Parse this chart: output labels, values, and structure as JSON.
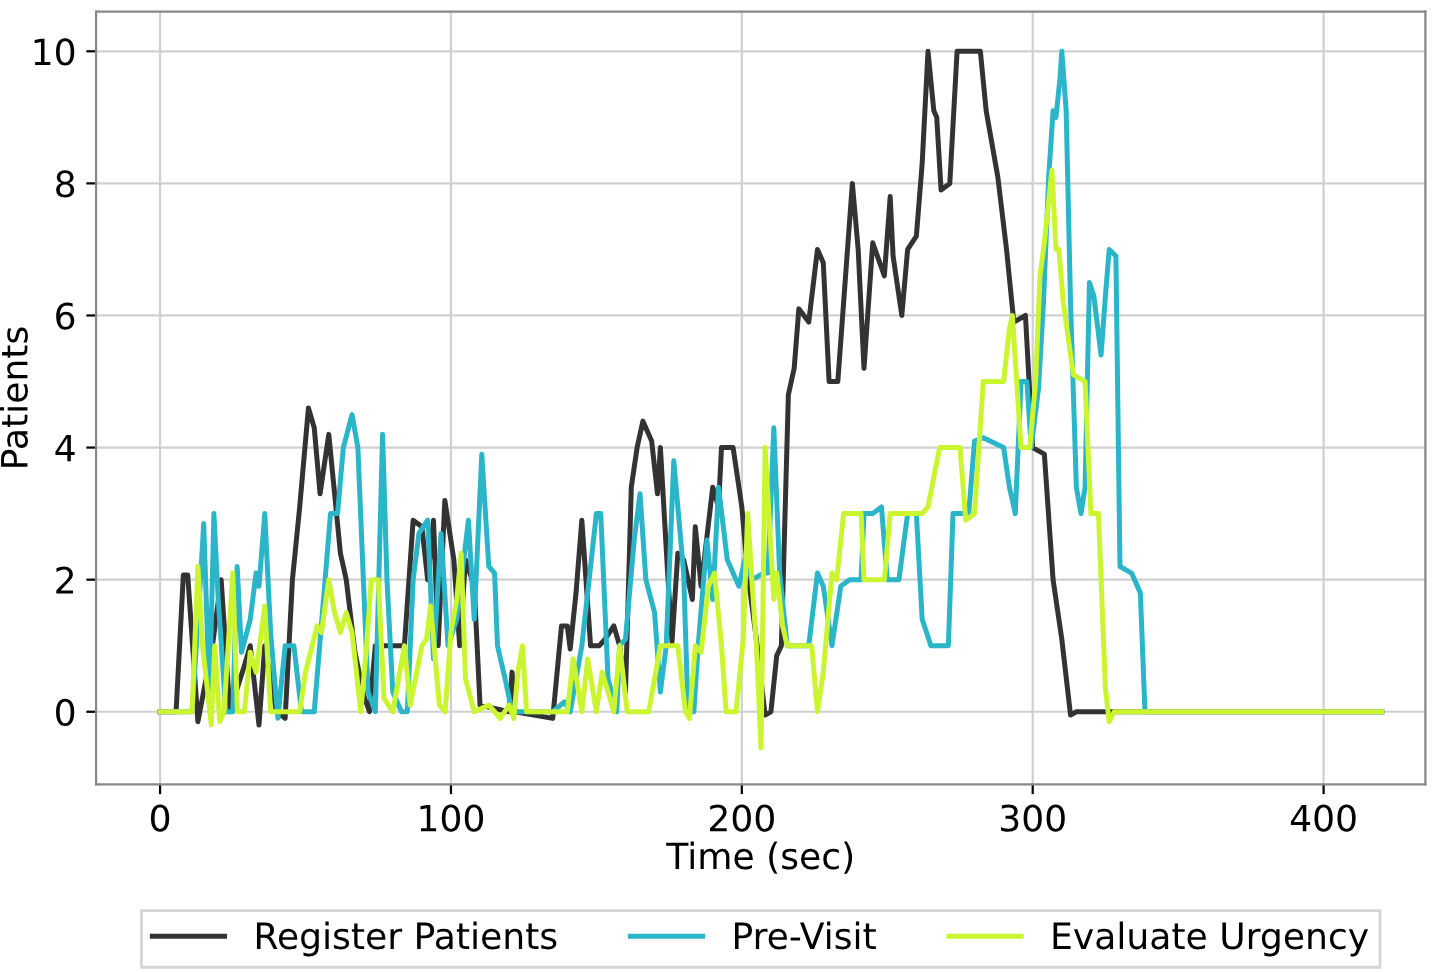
{
  "chart_data": {
    "type": "line",
    "xlabel": "Time (sec)",
    "ylabel": "Patients",
    "xlim": [
      -22,
      435
    ],
    "ylim": [
      -1.1,
      10.6
    ],
    "xticks": [
      0,
      100,
      200,
      300,
      400
    ],
    "yticks": [
      0,
      2,
      4,
      6,
      8,
      10
    ],
    "grid": true,
    "legend": "bottom",
    "line_style": "solid",
    "series": [
      {
        "name": "Register Patients",
        "color": "#333333",
        "x": [
          0,
          5.5,
          8,
          9.5,
          13,
          18,
          21,
          24,
          29,
          31,
          34,
          36,
          40,
          43,
          45.5,
          48,
          51,
          53,
          55,
          58,
          62,
          64,
          67,
          70,
          72,
          74,
          84,
          87,
          90,
          92,
          94,
          95.6,
          97.9,
          101,
          103,
          105,
          108,
          110,
          120,
          121,
          122,
          135,
          138,
          140,
          141,
          143,
          145,
          148,
          151,
          153,
          156,
          158,
          160,
          162,
          164,
          166,
          169,
          171,
          172,
          174.5,
          176,
          178,
          180,
          183,
          184,
          186,
          190,
          192,
          193,
          197,
          200,
          202,
          205,
          208,
          210,
          212,
          213.6,
          216,
          218,
          219.6,
          223,
          226,
          228,
          230,
          233,
          236,
          238,
          240,
          242,
          245,
          249,
          251,
          252,
          255,
          257,
          260,
          262,
          264,
          266,
          267,
          268.5,
          271.5,
          274,
          282,
          284,
          288,
          291,
          293.5,
          297.5,
          300,
          304,
          307,
          310,
          313,
          315,
          420
        ],
        "values": [
          0,
          0,
          2.07,
          2.07,
          -0.15,
          1.0,
          2.0,
          0,
          0.7,
          1.0,
          -0.2,
          1.0,
          0,
          -0.1,
          2.0,
          3.1,
          4.6,
          4.3,
          3.3,
          4.2,
          2.4,
          2.0,
          0.9,
          0.25,
          0,
          1.0,
          1.0,
          2.9,
          2.8,
          2.0,
          2.9,
          1.0,
          3.2,
          2.3,
          1.0,
          2.3,
          1.9,
          0.1,
          0,
          0.6,
          0,
          -0.1,
          1.3,
          1.3,
          0.95,
          1.8,
          2.9,
          1.0,
          1.0,
          1.1,
          1.3,
          1.0,
          0.3,
          3.4,
          4.0,
          4.4,
          4.1,
          3.3,
          4.0,
          2.1,
          1.06,
          2.4,
          2.3,
          1.7,
          2.8,
          1.9,
          3.4,
          3.1,
          4.0,
          4.0,
          3.1,
          2.1,
          1.1,
          -0.05,
          0,
          0.85,
          1.0,
          4.8,
          5.2,
          6.1,
          5.9,
          7.0,
          6.8,
          5.0,
          5.0,
          6.8,
          8.0,
          7.0,
          5.2,
          7.1,
          6.6,
          7.8,
          6.9,
          6.0,
          7.0,
          7.2,
          8.3,
          10.0,
          9.1,
          9.0,
          7.9,
          8.0,
          10.0,
          10.0,
          9.1,
          8.1,
          7.0,
          5.9,
          6.0,
          4.0,
          3.9,
          2.0,
          1.1,
          -0.05,
          0,
          0
        ]
      },
      {
        "name": "Pre-Visit",
        "color": "#2ab5c9",
        "x": [
          0,
          10,
          11,
          13.5,
          15,
          17,
          18.5,
          20,
          22.6,
          25,
          26.5,
          28,
          31,
          33,
          34,
          36,
          38,
          40.5,
          43,
          46,
          48.6,
          53,
          58.6,
          61,
          63,
          66,
          68,
          71.5,
          74,
          76.5,
          78,
          80,
          83,
          85,
          87,
          89,
          92,
          94,
          96.6,
          99,
          102,
          106,
          108,
          110.6,
          113,
          115,
          116,
          118.6,
          121,
          135,
          139,
          141,
          145,
          148,
          150,
          151.5,
          154,
          157,
          158,
          160,
          163,
          165,
          167,
          170,
          172,
          174,
          176.6,
          180,
          181.5,
          183.5,
          185,
          188,
          190,
          192,
          195,
          199,
          201,
          203.5,
          207.6,
          209,
          211,
          213,
          215.6,
          223,
          226,
          228,
          231,
          234,
          237,
          241,
          242,
          245,
          248,
          250,
          254,
          257,
          260,
          262,
          265,
          271,
          272.6,
          278,
          280,
          283,
          290,
          292,
          294,
          296,
          298,
          299.5,
          302,
          303.7,
          305.5,
          307,
          308,
          309.4,
          310,
          311.5,
          313,
          315,
          316.6,
          318,
          319.5,
          321,
          323.5,
          325,
          326.3,
          328.6,
          330,
          334,
          337,
          338.6,
          420
        ],
        "values": [
          0,
          0,
          0,
          1.7,
          2.85,
          0.2,
          3.0,
          1.7,
          0,
          0,
          2.2,
          0.9,
          1.4,
          2.1,
          1.9,
          3.0,
          1.2,
          -0.1,
          1.0,
          1.0,
          0,
          0,
          3.0,
          3.0,
          4.0,
          4.5,
          4.0,
          0.3,
          0,
          4.2,
          2.0,
          0.3,
          0,
          0,
          2.0,
          2.7,
          2.9,
          0.8,
          2.7,
          1.0,
          1.4,
          2.9,
          1.4,
          3.9,
          2.2,
          2.1,
          1.0,
          0.5,
          0,
          0,
          0.15,
          0,
          1.0,
          2.2,
          3.0,
          3.0,
          0.5,
          0,
          1.0,
          1.1,
          2.6,
          3.3,
          2.0,
          1.5,
          0.3,
          1.0,
          3.8,
          2.1,
          0,
          0,
          1.0,
          2.6,
          1.7,
          3.4,
          2.3,
          1.9,
          2.3,
          2.0,
          2.1,
          2.1,
          4.3,
          2.1,
          1.0,
          1.0,
          2.1,
          1.9,
          1.0,
          1.9,
          2.0,
          2.0,
          3.0,
          3.0,
          3.1,
          2.0,
          2.0,
          3.0,
          3.0,
          1.4,
          1.0,
          1.0,
          3.0,
          3.0,
          4.1,
          4.15,
          4.0,
          3.4,
          3.0,
          5.0,
          5.0,
          4.0,
          4.9,
          6.2,
          8.1,
          9.1,
          9.0,
          9.6,
          10.0,
          9.1,
          6.2,
          3.4,
          3.0,
          3.4,
          6.5,
          6.3,
          5.4,
          6.3,
          7.0,
          6.9,
          2.2,
          2.1,
          1.8,
          0,
          0
        ]
      },
      {
        "name": "Evaluate Urgency",
        "color": "#ccf531",
        "x": [
          0,
          11,
          13,
          14.6,
          17.6,
          18.8,
          20.5,
          22,
          25,
          26.6,
          29,
          31,
          33,
          36,
          38,
          41,
          48,
          50,
          54,
          55.5,
          58,
          60,
          62,
          64,
          66,
          69,
          71,
          72.6,
          75,
          77,
          80,
          84,
          86,
          90,
          91.6,
          93,
          96,
          98,
          100,
          102,
          103.5,
          105,
          108,
          113,
          115,
          117,
          120,
          121.6,
          123,
          124.6,
          126,
          140,
          142,
          145,
          147,
          150,
          152,
          156,
          158,
          160.6,
          164,
          168,
          172,
          178,
          180.6,
          182,
          184,
          186,
          188.5,
          190.6,
          193,
          194.6,
          198,
          200.5,
          202,
          203.6,
          205,
          206.6,
          208,
          211,
          212,
          214,
          215.6,
          224,
          226,
          228,
          231,
          232.6,
          235,
          241,
          242,
          249,
          251,
          262,
          264,
          268,
          275,
          277,
          280,
          283,
          290,
          292,
          293,
          296,
          299,
          301,
          302.5,
          304,
          306.6,
          308,
          309,
          310.5,
          314,
          318,
          320,
          322.6,
          325,
          326.3,
          328,
          420
        ],
        "values": [
          0,
          0,
          2.2,
          1.0,
          -0.2,
          1.0,
          -0.15,
          0,
          2.1,
          0,
          0,
          0.9,
          0.6,
          1.6,
          0,
          0,
          0,
          0.6,
          1.3,
          1.2,
          2.0,
          1.5,
          1.2,
          1.5,
          1.2,
          0,
          1.0,
          2.0,
          2.0,
          0.2,
          0,
          1.0,
          0.1,
          1.0,
          1.1,
          1.6,
          0.1,
          0,
          1.2,
          1.7,
          2.4,
          0.5,
          0,
          0.1,
          0,
          -0.1,
          0.1,
          -0.1,
          0.6,
          1.0,
          0,
          0,
          0.8,
          0,
          0.8,
          0,
          0.6,
          0,
          1.0,
          0,
          0,
          0,
          1.0,
          1.0,
          0,
          -0.1,
          1.0,
          0.9,
          1.9,
          2.1,
          1.0,
          0,
          0,
          1.1,
          3.0,
          1.9,
          1.0,
          -0.55,
          4.0,
          1.7,
          2.1,
          1.3,
          1.0,
          1.0,
          0,
          0.6,
          2.1,
          2.0,
          3.0,
          3.0,
          2.0,
          2.0,
          3.0,
          3.0,
          3.1,
          4.0,
          4.0,
          2.9,
          3.0,
          5.0,
          5.0,
          5.8,
          6.0,
          4.0,
          4.0,
          5.0,
          6.6,
          7.1,
          8.2,
          7.0,
          7.0,
          6.2,
          5.1,
          5.0,
          3.0,
          3.0,
          0.35,
          -0.15,
          0,
          0
        ]
      }
    ]
  }
}
